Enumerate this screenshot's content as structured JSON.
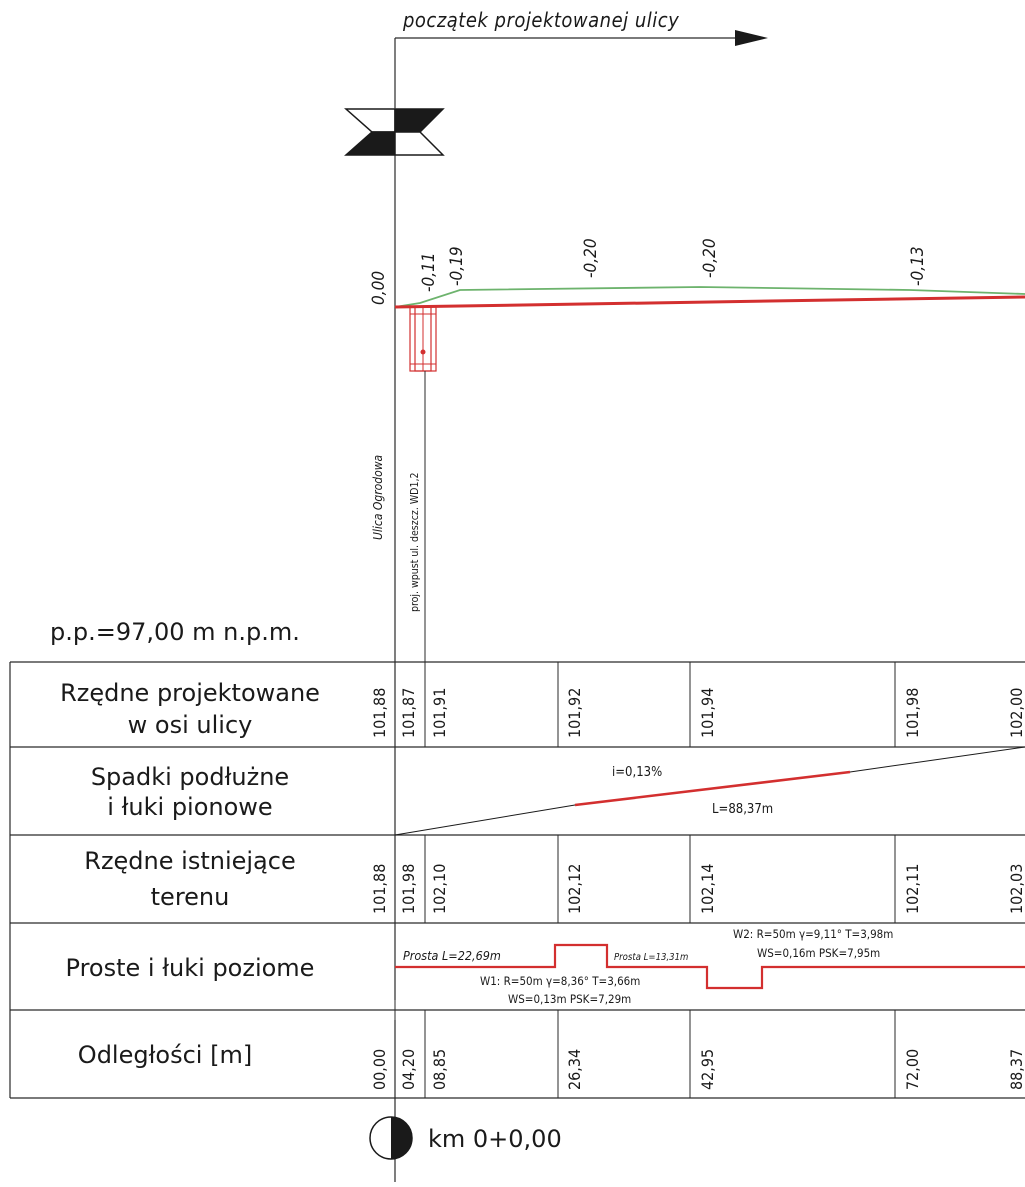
{
  "header": {
    "title": "początek projektowanej ulicy"
  },
  "profile": {
    "datum_label": "p.p.=97,00 m n.p.m.",
    "left_label": "Ulica Ogrodowa",
    "drain_label": "proj. wpust ul. deszcz. WD1,2",
    "depth_labels": [
      "0,00",
      "-0,11",
      "-0,19",
      "-0,20",
      "-0,20",
      "-0,13"
    ],
    "colors": {
      "design_line": "#d32f2f",
      "terrain_line": "#6db36d",
      "ink": "#1a1a1a"
    }
  },
  "table": {
    "rows": [
      {
        "label_line1": "Rzędne projektowane",
        "label_line2": "w osi ulicy"
      },
      {
        "label_line1": "Spadki podłużne",
        "label_line2": "i łuki pionowe"
      },
      {
        "label_line1": "Rzędne istniejące",
        "label_line2": "terenu"
      },
      {
        "label_line1": "Proste i łuki poziome",
        "label_line2": ""
      },
      {
        "label_line1": "Odległości [m]",
        "label_line2": ""
      }
    ],
    "design_elevations": [
      "101,88",
      "101,87",
      "101,91",
      "101,92",
      "101,94",
      "101,98",
      "102,00"
    ],
    "slope": {
      "grade": "i=0,13%",
      "length": "L=88,37m"
    },
    "existing_elevations": [
      "101,88",
      "101,98",
      "102,10",
      "102,12",
      "102,14",
      "102,11",
      "102,03"
    ],
    "alignment": {
      "straight1": "Prosta L=22,69m",
      "straight2": "Prosta L=13,31m",
      "w1_line1": "W1: R=50m γ=8,36° T=3,66m",
      "w1_line2": "WS=0,13m PSK=7,29m",
      "w2_line1": "W2: R=50m γ=9,11° T=3,98m",
      "w2_line2": "WS=0,16m PSK=7,95m"
    },
    "distances": [
      "00,00",
      "04,20",
      "08,85",
      "26,34",
      "42,95",
      "72,00",
      "88,37"
    ]
  },
  "footer": {
    "chainage": "km 0+0,00"
  }
}
